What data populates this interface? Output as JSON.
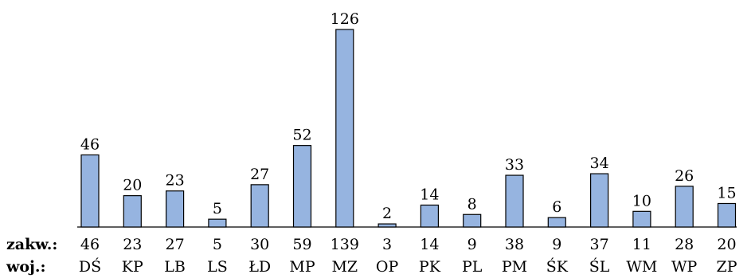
{
  "chart_data": {
    "type": "bar",
    "categories": [
      "DŚ",
      "KP",
      "LB",
      "LS",
      "ŁD",
      "MP",
      "MZ",
      "OP",
      "PK",
      "PL",
      "PM",
      "ŚK",
      "ŚL",
      "WM",
      "WP",
      "ZP"
    ],
    "values": [
      46,
      20,
      23,
      5,
      27,
      52,
      126,
      2,
      14,
      8,
      33,
      6,
      34,
      10,
      26,
      15
    ],
    "zakw": [
      "46",
      "23",
      "27",
      "5",
      "30",
      "59",
      "139",
      "3",
      "14",
      "9",
      "38",
      "9",
      "37",
      "11",
      "28",
      "20"
    ],
    "row_labels": {
      "zakw": "zakw.:",
      "woj": "woj.:"
    },
    "bar_color": "#96b4e0",
    "bar_stroke": "#000000",
    "ylim": [
      0,
      126
    ]
  }
}
